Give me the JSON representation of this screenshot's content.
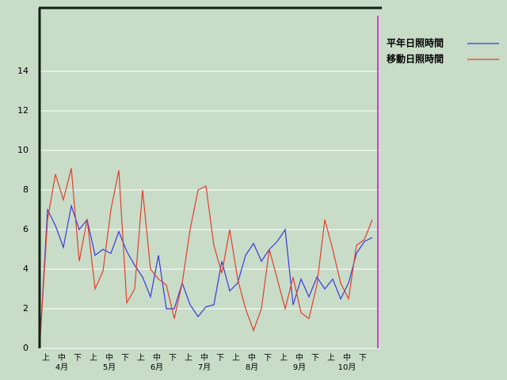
{
  "chart_data": {
    "type": "line",
    "categories": [
      null,
      "上",
      null,
      "中",
      null,
      "下",
      null,
      "上",
      null,
      "中",
      null,
      "下",
      null,
      "上",
      null,
      "中",
      null,
      "下",
      null,
      "上",
      null,
      "中",
      null,
      "下",
      null,
      "上",
      null,
      "中",
      null,
      "下",
      null,
      "上",
      null,
      "中",
      null,
      "下",
      null,
      "上",
      null,
      "中",
      null,
      "下",
      null
    ],
    "months": [
      "4月",
      "5月",
      "6月",
      "7月",
      "8月",
      "9月",
      "10月"
    ],
    "series": [
      {
        "name": "平年日照時間",
        "color": "#3a3ade",
        "values": [
          0,
          7.0,
          6.2,
          5.1,
          7.2,
          6.0,
          6.5,
          4.7,
          5.0,
          4.8,
          5.9,
          4.9,
          4.2,
          3.6,
          2.6,
          4.7,
          2.0,
          2.0,
          3.3,
          2.2,
          1.6,
          2.1,
          2.2,
          4.4,
          2.9,
          3.3,
          4.7,
          5.3,
          4.4,
          5.0,
          5.4,
          6.0,
          2.2,
          3.5,
          2.6,
          3.6,
          3.0,
          3.5,
          2.5,
          3.3,
          4.8,
          5.4,
          5.6
        ]
      },
      {
        "name": "移動日照時間",
        "color": "#e0402c",
        "values": [
          0,
          6.5,
          8.8,
          7.5,
          9.1,
          4.4,
          6.5,
          3.0,
          3.9,
          7.0,
          9.0,
          2.3,
          3.0,
          8.0,
          4.0,
          3.5,
          3.2,
          1.5,
          3.3,
          6.0,
          8.0,
          8.2,
          5.2,
          3.8,
          6.0,
          3.5,
          2.0,
          0.9,
          2.0,
          5.0,
          3.5,
          2.0,
          3.6,
          1.8,
          1.5,
          3.2,
          6.5,
          5.0,
          3.3,
          2.5,
          5.2,
          5.5,
          6.5
        ]
      }
    ],
    "ylim": [
      0,
      17.2
    ],
    "yticks": [
      0,
      2,
      4,
      6,
      8,
      10,
      12,
      14
    ],
    "grid": true
  }
}
